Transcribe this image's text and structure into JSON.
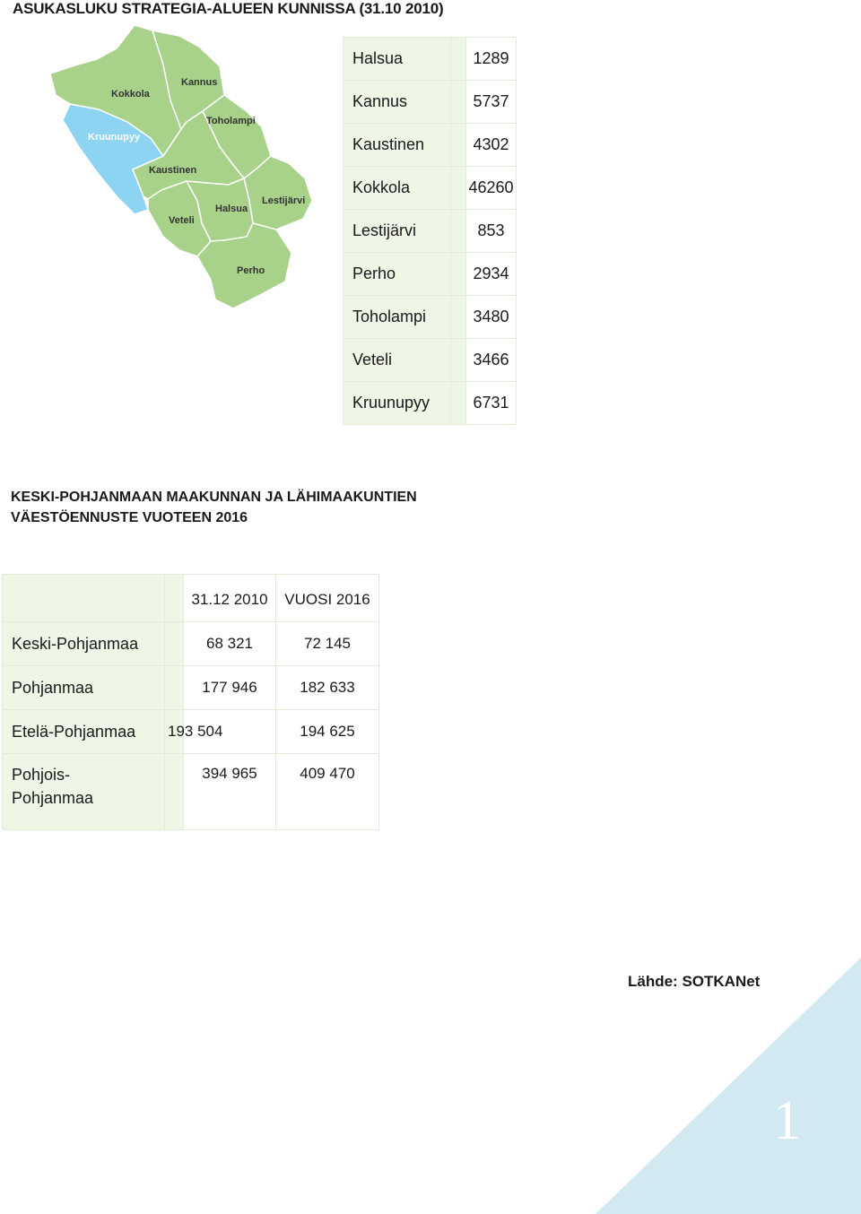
{
  "title": "ASUKASLUKU STRATEGIA-ALUEEN KUNNISSA (31.10 2010)",
  "map": {
    "labels": [
      "Kokkola",
      "Kannus",
      "Toholampi",
      "Kruunupyy",
      "Kaustinen",
      "Lestijärvi",
      "Halsua",
      "Veteli",
      "Perho"
    ],
    "land_color": "#a8d28a",
    "sea_color": "#8dd3f2"
  },
  "population": [
    {
      "name": "Halsua",
      "value": "1289"
    },
    {
      "name": "Kannus",
      "value": "5737"
    },
    {
      "name": "Kaustinen",
      "value": "4302"
    },
    {
      "name": "Kokkola",
      "value": "46260"
    },
    {
      "name": "Lestijärvi",
      "value": "853"
    },
    {
      "name": "Perho",
      "value": "2934"
    },
    {
      "name": "Toholampi",
      "value": "3480"
    },
    {
      "name": "Veteli",
      "value": "3466"
    },
    {
      "name": "Kruunupyy",
      "value": "6731"
    }
  ],
  "forecast": {
    "title_line1": "KESKI-POHJANMAAN MAAKUNNAN JA LÄHIMAAKUNTIEN",
    "title_line2": "VÄESTÖENNUSTE VUOTEEN 2016",
    "headers": [
      "31.12 2010",
      "VUOSI 2016"
    ],
    "rows": [
      {
        "name": "Keski-Pohjanmaa",
        "v2010": "68 321",
        "v2016": "72 145"
      },
      {
        "name": "Pohjanmaa",
        "v2010": "177 946",
        "v2016": "182 633"
      },
      {
        "name": "Etelä-Pohjanmaa",
        "v2010": "193 504",
        "v2016": "194 625"
      },
      {
        "name_line1": "Pohjois-",
        "name_line2": "Pohjanmaa",
        "v2010": "394 965",
        "v2016": "409 470"
      }
    ]
  },
  "source": "Lähde: SOTKANet",
  "page_number": "1",
  "corner_color": "#d3e9f1"
}
